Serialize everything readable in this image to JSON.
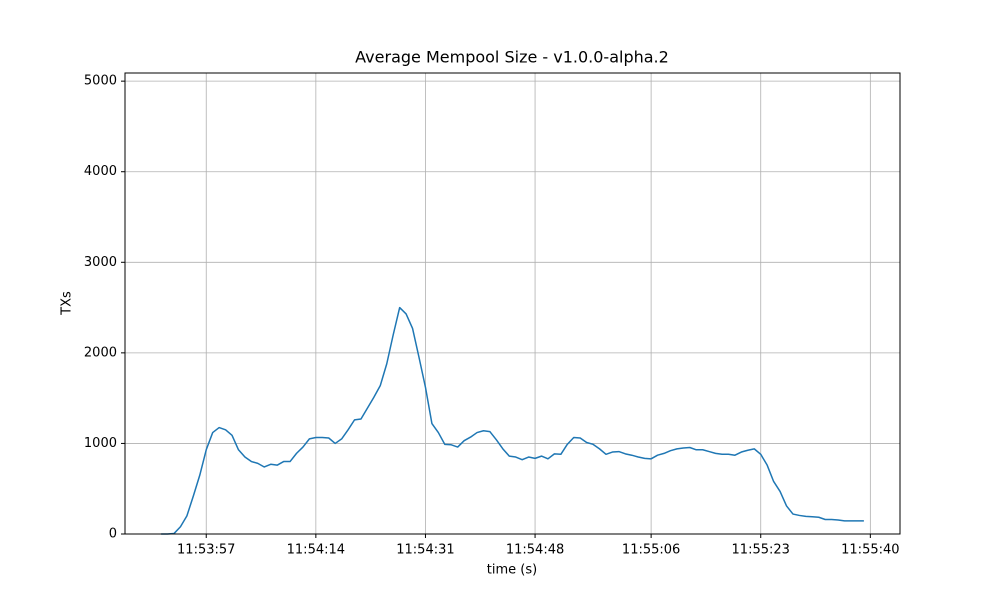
{
  "chart_data": {
    "type": "line",
    "title": "Average Mempool Size  -  v1.0.0-alpha.2",
    "xlabel": "time (s)",
    "ylabel": "TXs",
    "x": [
      "11:53:50",
      "11:53:51",
      "11:53:52",
      "11:53:53",
      "11:53:54",
      "11:53:55",
      "11:53:56",
      "11:53:57",
      "11:53:58",
      "11:53:59",
      "11:54:00",
      "11:54:01",
      "11:54:02",
      "11:54:03",
      "11:54:04",
      "11:54:05",
      "11:54:06",
      "11:54:07",
      "11:54:08",
      "11:54:09",
      "11:54:10",
      "11:54:11",
      "11:54:12",
      "11:54:13",
      "11:54:14",
      "11:54:15",
      "11:54:16",
      "11:54:17",
      "11:54:18",
      "11:54:19",
      "11:54:20",
      "11:54:21",
      "11:54:22",
      "11:54:23",
      "11:54:24",
      "11:54:25",
      "11:54:26",
      "11:54:27",
      "11:54:28",
      "11:54:29",
      "11:54:30",
      "11:54:31",
      "11:54:32",
      "11:54:33",
      "11:54:34",
      "11:54:35",
      "11:54:36",
      "11:54:37",
      "11:54:38",
      "11:54:39",
      "11:54:40",
      "11:54:41",
      "11:54:42",
      "11:54:43",
      "11:54:44",
      "11:54:45",
      "11:54:46",
      "11:54:47",
      "11:54:48",
      "11:54:49",
      "11:54:50",
      "11:54:51",
      "11:54:52",
      "11:54:53",
      "11:54:54",
      "11:54:55",
      "11:54:56",
      "11:54:57",
      "11:54:58",
      "11:54:59",
      "11:55:00",
      "11:55:01",
      "11:55:02",
      "11:55:03",
      "11:55:04",
      "11:55:05",
      "11:55:06",
      "11:55:07",
      "11:55:08",
      "11:55:09",
      "11:55:10",
      "11:55:11",
      "11:55:12",
      "11:55:13",
      "11:55:14",
      "11:55:15",
      "11:55:16",
      "11:55:17",
      "11:55:18",
      "11:55:19",
      "11:55:20",
      "11:55:21",
      "11:55:22",
      "11:55:23",
      "11:55:24",
      "11:55:25",
      "11:55:26",
      "11:55:27",
      "11:55:28",
      "11:55:29",
      "11:55:30",
      "11:55:31",
      "11:55:32",
      "11:55:33",
      "11:55:34",
      "11:55:35",
      "11:55:36",
      "11:55:37",
      "11:55:38",
      "11:55:39"
    ],
    "series": [
      {
        "name": "TXs",
        "color": "#1f77b4",
        "values": [
          0,
          0,
          5,
          80,
          200,
          420,
          650,
          930,
          1120,
          1175,
          1150,
          1090,
          930,
          850,
          800,
          780,
          740,
          770,
          760,
          800,
          800,
          890,
          960,
          1050,
          1065,
          1065,
          1060,
          1000,
          1050,
          1150,
          1260,
          1270,
          1390,
          1510,
          1640,
          1880,
          2200,
          2500,
          2430,
          2270,
          1950,
          1620,
          1220,
          1120,
          990,
          985,
          960,
          1030,
          1070,
          1120,
          1140,
          1130,
          1040,
          940,
          860,
          850,
          820,
          850,
          835,
          860,
          830,
          885,
          880,
          990,
          1065,
          1060,
          1010,
          990,
          940,
          880,
          905,
          910,
          885,
          870,
          850,
          835,
          830,
          870,
          890,
          920,
          940,
          950,
          955,
          930,
          930,
          910,
          890,
          880,
          880,
          870,
          905,
          925,
          940,
          880,
          760,
          580,
          470,
          310,
          220,
          205,
          195,
          190,
          185,
          160,
          160,
          155,
          145,
          145,
          145,
          145
        ]
      }
    ],
    "xlim": [
      "11:53:44.4",
      "11:55:44.6"
    ],
    "xticks": [
      "11:53:57",
      "11:54:14",
      "11:54:31",
      "11:54:48",
      "11:55:06",
      "11:55:23",
      "11:55:40"
    ],
    "ylim": [
      0,
      5090
    ],
    "yticks": [
      0,
      1000,
      2000,
      3000,
      4000,
      5000
    ],
    "grid": true
  }
}
